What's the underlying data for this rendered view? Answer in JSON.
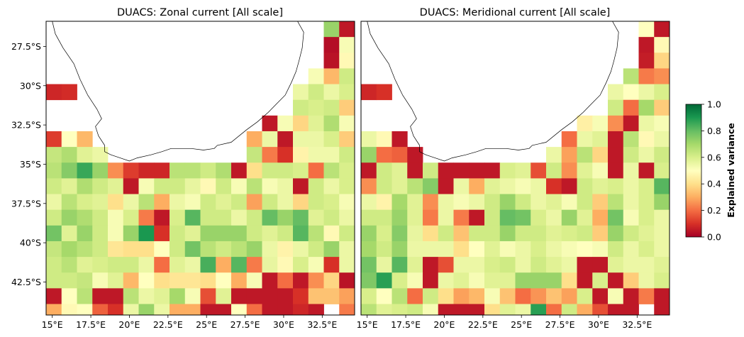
{
  "chart_data": [
    {
      "type": "heatmap",
      "title": "DUACS: Zonal current [All scale]",
      "xlabel": "",
      "ylabel": "",
      "x_ticks": [
        "15°E",
        "17.5°E",
        "20°E",
        "22.5°E",
        "25°E",
        "27.5°E",
        "30°E",
        "32.5°E"
      ],
      "y_ticks": [
        "27.5°S",
        "30°S",
        "32.5°S",
        "35°S",
        "37.5°S",
        "40°S",
        "42.5°S"
      ],
      "x_range": [
        14.6,
        34.6
      ],
      "y_range": [
        -44.6,
        -25.9
      ],
      "grid": {
        "lon_start": 14.6,
        "lat_top": -25.9,
        "step": 1.0,
        "cols": 20,
        "rows": 19
      },
      "values": [
        [
          null,
          null,
          null,
          null,
          null,
          null,
          null,
          null,
          null,
          null,
          null,
          null,
          null,
          null,
          null,
          null,
          null,
          null,
          0.72,
          0.05
        ],
        [
          null,
          null,
          null,
          null,
          null,
          null,
          null,
          null,
          null,
          null,
          null,
          null,
          null,
          null,
          null,
          null,
          null,
          null,
          0.03,
          0.52
        ],
        [
          null,
          null,
          null,
          null,
          null,
          null,
          null,
          null,
          null,
          null,
          null,
          null,
          null,
          null,
          null,
          null,
          null,
          null,
          0.04,
          0.48
        ],
        [
          null,
          null,
          null,
          null,
          null,
          null,
          null,
          null,
          null,
          null,
          null,
          null,
          null,
          null,
          null,
          null,
          null,
          0.52,
          0.32,
          0.62
        ],
        [
          0.08,
          0.09,
          null,
          null,
          null,
          null,
          null,
          null,
          null,
          null,
          null,
          null,
          null,
          null,
          null,
          null,
          0.55,
          0.62,
          0.55,
          0.6
        ],
        [
          null,
          null,
          null,
          null,
          null,
          null,
          null,
          null,
          null,
          null,
          null,
          null,
          null,
          null,
          null,
          null,
          0.62,
          0.6,
          0.62,
          0.36
        ],
        [
          null,
          null,
          null,
          null,
          null,
          null,
          null,
          null,
          null,
          null,
          null,
          null,
          null,
          null,
          0.05,
          0.52,
          0.38,
          0.58,
          0.68,
          0.52
        ],
        [
          0.12,
          0.5,
          0.32,
          null,
          null,
          null,
          null,
          null,
          null,
          null,
          null,
          null,
          null,
          0.3,
          0.55,
          0.05,
          0.55,
          0.55,
          0.6,
          0.36
        ],
        [
          0.64,
          0.68,
          0.58,
          0.55,
          null,
          null,
          null,
          null,
          null,
          null,
          null,
          null,
          null,
          0.64,
          0.22,
          0.1,
          0.46,
          0.54,
          0.54,
          0.62
        ],
        [
          0.66,
          0.75,
          0.86,
          0.72,
          0.25,
          0.12,
          0.08,
          0.08,
          0.66,
          0.66,
          0.62,
          0.68,
          0.05,
          0.4,
          0.62,
          0.62,
          0.6,
          0.2,
          0.66,
          0.6
        ],
        [
          0.62,
          0.58,
          0.68,
          0.62,
          0.58,
          0.05,
          0.52,
          0.62,
          0.62,
          0.56,
          0.48,
          0.62,
          0.52,
          0.66,
          0.52,
          0.55,
          0.05,
          0.62,
          0.55,
          0.6
        ],
        [
          0.55,
          0.66,
          0.6,
          0.58,
          0.4,
          0.55,
          0.66,
          0.3,
          0.55,
          0.52,
          0.62,
          0.58,
          0.62,
          0.28,
          0.62,
          0.55,
          0.38,
          0.62,
          0.6,
          0.52
        ],
        [
          0.62,
          0.72,
          0.68,
          0.62,
          0.52,
          0.6,
          0.22,
          0.05,
          0.6,
          0.82,
          0.62,
          0.62,
          0.55,
          0.62,
          0.8,
          0.72,
          0.8,
          0.58,
          0.62,
          0.55
        ],
        [
          0.78,
          0.58,
          0.72,
          0.62,
          0.52,
          0.72,
          0.9,
          0.1,
          0.62,
          0.58,
          0.72,
          0.72,
          0.72,
          0.62,
          0.58,
          0.62,
          0.82,
          0.66,
          0.48,
          0.62
        ],
        [
          0.64,
          0.7,
          0.66,
          0.62,
          0.42,
          0.4,
          0.4,
          0.5,
          0.62,
          0.78,
          0.66,
          0.62,
          0.66,
          0.72,
          0.55,
          0.46,
          0.55,
          0.62,
          0.72,
          0.55
        ],
        [
          0.62,
          0.66,
          0.58,
          0.6,
          0.62,
          0.62,
          0.55,
          0.2,
          0.58,
          0.55,
          0.84,
          0.3,
          0.82,
          0.22,
          0.56,
          0.48,
          0.6,
          0.52,
          0.1,
          0.55
        ],
        [
          0.62,
          0.62,
          0.64,
          0.52,
          0.58,
          0.32,
          0.5,
          0.4,
          0.42,
          0.42,
          0.4,
          0.5,
          0.3,
          0.52,
          0.05,
          0.2,
          0.05,
          0.25,
          0.38,
          0.04
        ],
        [
          0.05,
          0.5,
          0.66,
          0.05,
          0.05,
          0.66,
          0.55,
          0.58,
          0.7,
          0.52,
          0.15,
          0.58,
          0.05,
          0.05,
          0.05,
          0.05,
          0.1,
          0.34,
          0.34,
          0.28
        ],
        [
          0.3,
          0.48,
          0.5,
          0.18,
          0.1,
          0.55,
          0.72,
          0.55,
          0.3,
          0.3,
          0.05,
          0.05,
          0.5,
          0.2,
          0.05,
          0.05,
          0.08,
          0.05,
          null,
          0.22
        ]
      ]
    },
    {
      "type": "heatmap",
      "title": "DUACS: Meridional current [All scale]",
      "xlabel": "",
      "ylabel": "",
      "x_ticks": [
        "15°E",
        "17.5°E",
        "20°E",
        "22.5°E",
        "25°E",
        "27.5°E",
        "30°E",
        "32.5°E"
      ],
      "y_ticks": [],
      "x_range": [
        14.6,
        34.6
      ],
      "y_range": [
        -44.6,
        -25.9
      ],
      "grid": {
        "lon_start": 14.6,
        "lat_top": -25.9,
        "step": 1.0,
        "cols": 20,
        "rows": 19
      },
      "values": [
        [
          null,
          null,
          null,
          null,
          null,
          null,
          null,
          null,
          null,
          null,
          null,
          null,
          null,
          null,
          null,
          null,
          null,
          null,
          0.5,
          0.05
        ],
        [
          null,
          null,
          null,
          null,
          null,
          null,
          null,
          null,
          null,
          null,
          null,
          null,
          null,
          null,
          null,
          null,
          null,
          null,
          0.05,
          0.48
        ],
        [
          null,
          null,
          null,
          null,
          null,
          null,
          null,
          null,
          null,
          null,
          null,
          null,
          null,
          null,
          null,
          null,
          null,
          null,
          0.06,
          0.38
        ],
        [
          null,
          null,
          null,
          null,
          null,
          null,
          null,
          null,
          null,
          null,
          null,
          null,
          null,
          null,
          null,
          null,
          null,
          0.66,
          0.22,
          0.25
        ],
        [
          0.08,
          0.1,
          null,
          null,
          null,
          null,
          null,
          null,
          null,
          null,
          null,
          null,
          null,
          null,
          null,
          null,
          0.55,
          0.5,
          0.55,
          0.6
        ],
        [
          null,
          null,
          null,
          null,
          null,
          null,
          null,
          null,
          null,
          null,
          null,
          null,
          null,
          null,
          null,
          null,
          0.62,
          0.2,
          0.7,
          0.36
        ],
        [
          null,
          null,
          null,
          null,
          null,
          null,
          null,
          null,
          null,
          null,
          null,
          null,
          null,
          null,
          0.45,
          0.52,
          0.25,
          0.05,
          0.55,
          0.52
        ],
        [
          0.55,
          0.48,
          0.05,
          null,
          null,
          null,
          null,
          null,
          null,
          null,
          null,
          null,
          null,
          0.2,
          0.55,
          0.58,
          0.05,
          0.66,
          0.48,
          0.55
        ],
        [
          0.72,
          0.2,
          0.18,
          0.05,
          null,
          null,
          null,
          null,
          null,
          null,
          null,
          null,
          0.55,
          0.28,
          0.66,
          0.38,
          0.05,
          0.62,
          0.55,
          0.62
        ],
        [
          0.05,
          0.62,
          0.58,
          0.05,
          0.62,
          0.05,
          0.05,
          0.05,
          0.05,
          0.6,
          0.58,
          0.15,
          0.62,
          0.25,
          0.58,
          0.52,
          0.05,
          0.55,
          0.05,
          0.6
        ],
        [
          0.25,
          0.62,
          0.58,
          0.66,
          0.75,
          0.05,
          0.55,
          0.3,
          0.58,
          0.55,
          0.52,
          0.55,
          0.1,
          0.05,
          0.62,
          0.58,
          0.6,
          0.55,
          0.6,
          0.82
        ],
        [
          0.55,
          0.46,
          0.7,
          0.58,
          0.25,
          0.55,
          0.52,
          0.55,
          0.62,
          0.72,
          0.62,
          0.55,
          0.58,
          0.52,
          0.62,
          0.36,
          0.66,
          0.55,
          0.6,
          0.72
        ],
        [
          0.62,
          0.62,
          0.72,
          0.58,
          0.22,
          0.55,
          0.22,
          0.05,
          0.62,
          0.8,
          0.78,
          0.6,
          0.55,
          0.72,
          0.58,
          0.3,
          0.78,
          0.52,
          0.6,
          0.55
        ],
        [
          0.72,
          0.6,
          0.75,
          0.56,
          0.4,
          0.62,
          0.34,
          0.62,
          0.62,
          0.72,
          0.62,
          0.62,
          0.58,
          0.6,
          0.62,
          0.36,
          0.72,
          0.62,
          0.58,
          0.55
        ],
        [
          0.7,
          0.62,
          0.72,
          0.55,
          0.55,
          0.55,
          0.4,
          0.5,
          0.58,
          0.52,
          0.55,
          0.6,
          0.55,
          0.52,
          0.5,
          0.52,
          0.62,
          0.55,
          0.6,
          0.55
        ],
        [
          0.78,
          0.56,
          0.82,
          0.58,
          0.05,
          0.15,
          0.55,
          0.55,
          0.6,
          0.62,
          0.55,
          0.62,
          0.58,
          0.55,
          0.05,
          0.05,
          0.58,
          0.55,
          0.55,
          0.58
        ],
        [
          0.76,
          0.88,
          0.6,
          0.52,
          0.05,
          0.55,
          0.58,
          0.52,
          0.58,
          0.58,
          0.72,
          0.72,
          0.72,
          0.4,
          0.05,
          0.6,
          0.05,
          0.36,
          0.55,
          0.6
        ],
        [
          0.6,
          0.5,
          0.66,
          0.2,
          0.62,
          0.4,
          0.28,
          0.32,
          0.52,
          0.34,
          0.2,
          0.26,
          0.34,
          0.28,
          0.6,
          0.05,
          0.52,
          0.05,
          0.22,
          0.05
        ],
        [
          0.66,
          0.58,
          0.6,
          0.62,
          0.52,
          0.05,
          0.05,
          0.05,
          0.4,
          0.58,
          0.55,
          0.88,
          0.2,
          0.62,
          0.3,
          0.15,
          0.05,
          0.05,
          null,
          0.05
        ]
      ]
    }
  ],
  "colorbar": {
    "label": "Explained variance",
    "ticks": [
      "0.0",
      "0.2",
      "0.4",
      "0.6",
      "0.8",
      "1.0"
    ],
    "range": [
      0,
      1
    ],
    "colormap": "RdYlGn"
  },
  "colors": {
    "ramp": [
      "#a50026",
      "#d73027",
      "#f46d43",
      "#fdae61",
      "#fee08b",
      "#ffffbf",
      "#d9ef8b",
      "#a6d96a",
      "#66bd63",
      "#1a9850",
      "#006837"
    ],
    "coastline": "#000000"
  }
}
